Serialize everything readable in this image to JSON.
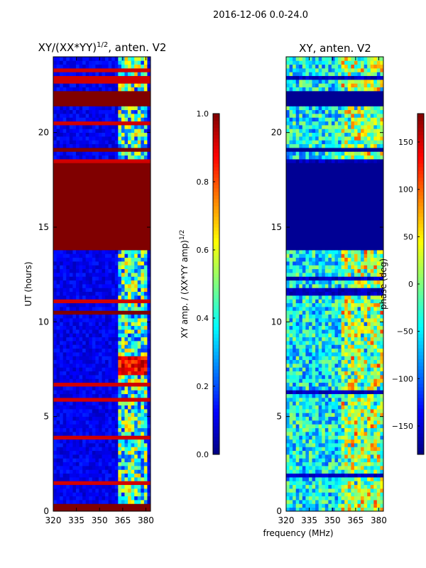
{
  "figure_title": "2016-12-06 0.0-24.0",
  "chart_data": [
    {
      "type": "heatmap",
      "title": "XY/(XX*YY)^{1/2}, anten. V2",
      "title_main": "XY/(XX*YY)",
      "title_exponent": "1/2",
      "title_suffix": ", anten. V2",
      "xlabel": "",
      "ylabel": "UT (hours)",
      "xlim": [
        320,
        383
      ],
      "ylim": [
        0,
        24
      ],
      "xticks": [
        320,
        335,
        350,
        365,
        380
      ],
      "yticks": [
        0,
        5,
        10,
        15,
        20
      ],
      "colorscale": "jet",
      "colorbar": {
        "label": "XY amp. / (XX*YY amp)^{1/2}",
        "label_main": "XY amp. / (XX*YY amp)",
        "label_exponent": "1/2",
        "range": [
          0.0,
          1.0
        ],
        "ticks": [
          "0.0",
          "0.2",
          "0.4",
          "0.6",
          "0.8",
          "1.0"
        ],
        "tick_values": [
          0.0,
          0.2,
          0.4,
          0.6,
          0.8,
          1.0
        ]
      },
      "saturated_time_bands": [
        [
          0.0,
          0.35
        ],
        [
          13.85,
          18.35
        ],
        [
          18.95,
          19.1
        ],
        [
          21.35,
          22.25
        ],
        [
          10.35,
          10.55
        ]
      ],
      "high_value_region": {
        "freq": [
          361,
          380
        ],
        "time": [
          7.2,
          8.2
        ]
      }
    },
    {
      "type": "heatmap",
      "title": "XY, anten. V2",
      "xlabel": "frequency (MHz)",
      "ylabel": "",
      "xlim": [
        320,
        383
      ],
      "ylim": [
        0,
        24
      ],
      "xticks": [
        320,
        335,
        350,
        365,
        380
      ],
      "yticks": [
        0,
        5,
        10,
        15,
        20
      ],
      "colorscale": "jet",
      "colorbar": {
        "label": "phase (deg)",
        "range": [
          -180,
          180
        ],
        "ticks": [
          "−150",
          "−100",
          "−50",
          "0",
          "50",
          "100",
          "150"
        ],
        "tick_values": [
          -150,
          -100,
          -50,
          0,
          50,
          100,
          150
        ]
      },
      "constant_phase_bands": [
        [
          13.85,
          18.35
        ],
        [
          18.95,
          19.1
        ],
        [
          21.35,
          22.25
        ]
      ]
    }
  ]
}
